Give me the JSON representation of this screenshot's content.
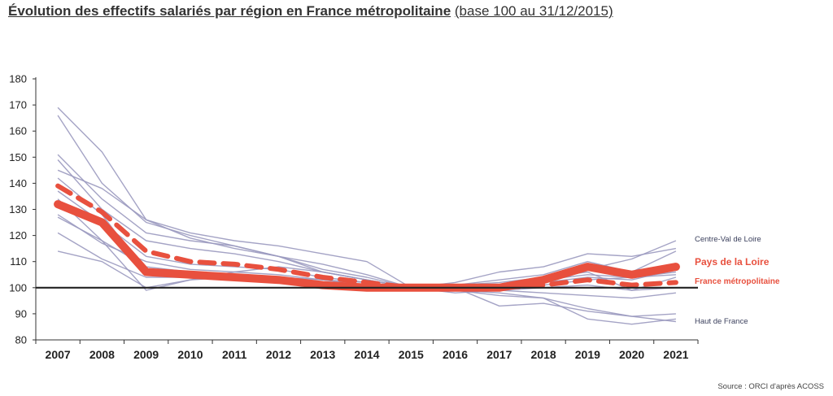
{
  "title": "Évolution des effectifs salariés par région en France métropolitaine",
  "subtitle": "(base 100 au 31/12/2015)",
  "source": "Source : ORCI d'après ACOSS",
  "colors": {
    "regions": "#9a99bf",
    "highlight": "#e8503e",
    "baseline": "#222222",
    "label_pdl": "#e8503e",
    "label_grey": "#3a3f5c"
  },
  "chart_data": {
    "type": "line",
    "categories": [
      "2007",
      "2008",
      "2009",
      "2010",
      "2011",
      "2012",
      "2013",
      "2014",
      "2015",
      "2016",
      "2017",
      "2018",
      "2019",
      "2020",
      "2021"
    ],
    "ylim": [
      80,
      180
    ],
    "yticks": [
      80,
      90,
      100,
      110,
      120,
      130,
      140,
      150,
      160,
      170,
      180
    ],
    "reference_line": 100,
    "grid": false,
    "series": [
      {
        "name": "Centre-Val de Loire",
        "style": "thin",
        "values": [
          145,
          138,
          126,
          119,
          115,
          112,
          106,
          103,
          100,
          99,
          101,
          104,
          107,
          111,
          118
        ]
      },
      {
        "name": "Haut de France",
        "style": "thin",
        "values": [
          128,
          117,
          110,
          107,
          106,
          105,
          103,
          101,
          100,
          99,
          97,
          96,
          92,
          89,
          87
        ]
      },
      {
        "name": "",
        "style": "thin",
        "values": [
          169,
          152,
          126,
          121,
          118,
          116,
          113,
          110,
          100,
          99,
          98,
          96,
          88,
          86,
          88
        ]
      },
      {
        "name": "",
        "style": "thin",
        "values": [
          166,
          140,
          125,
          120,
          116,
          112,
          109,
          105,
          100,
          101,
          102,
          104,
          106,
          99,
          104
        ]
      },
      {
        "name": "",
        "style": "thin",
        "values": [
          151,
          134,
          121,
          118,
          116,
          112,
          107,
          104,
          100,
          98,
          99,
          100,
          101,
          99,
          100
        ]
      },
      {
        "name": "",
        "style": "thin",
        "values": [
          149,
          130,
          118,
          115,
          113,
          110,
          106,
          103,
          100,
          100,
          101,
          103,
          105,
          104,
          106
        ]
      },
      {
        "name": "",
        "style": "thin",
        "values": [
          137,
          125,
          112,
          109,
          108,
          107,
          104,
          102,
          100,
          100,
          99,
          98,
          97,
          96,
          98
        ]
      },
      {
        "name": "",
        "style": "thin",
        "values": [
          127,
          118,
          108,
          106,
          105,
          104,
          102,
          101,
          100,
          100,
          100,
          101,
          103,
          104,
          105
        ]
      },
      {
        "name": "",
        "style": "thin",
        "values": [
          121,
          111,
          104,
          104,
          104,
          103,
          102,
          101,
          100,
          100,
          93,
          94,
          91,
          89,
          90
        ]
      },
      {
        "name": "",
        "style": "thin",
        "values": [
          114,
          110,
          100,
          103,
          104,
          103,
          102,
          101,
          100,
          102,
          106,
          108,
          113,
          112,
          115
        ]
      },
      {
        "name": "",
        "style": "thin",
        "values": [
          142,
          128,
          106,
          105,
          104,
          104,
          103,
          102,
          100,
          101,
          103,
          105,
          110,
          106,
          114
        ]
      },
      {
        "name": "",
        "style": "thin",
        "values": [
          134,
          118,
          99,
          103,
          106,
          108,
          106,
          103,
          100,
          99,
          100,
          102,
          104,
          103,
          107
        ]
      },
      {
        "name": "France métropolitaine",
        "style": "dashed",
        "values": [
          139,
          129,
          114,
          110,
          109,
          107,
          104,
          102,
          100,
          100,
          100,
          101,
          103,
          101,
          102
        ]
      },
      {
        "name": "Pays de la Loire",
        "style": "bold",
        "values": [
          132,
          125,
          106,
          105,
          104,
          103,
          101,
          100,
          100,
          100,
          100,
          103,
          108,
          105,
          108
        ]
      }
    ]
  }
}
